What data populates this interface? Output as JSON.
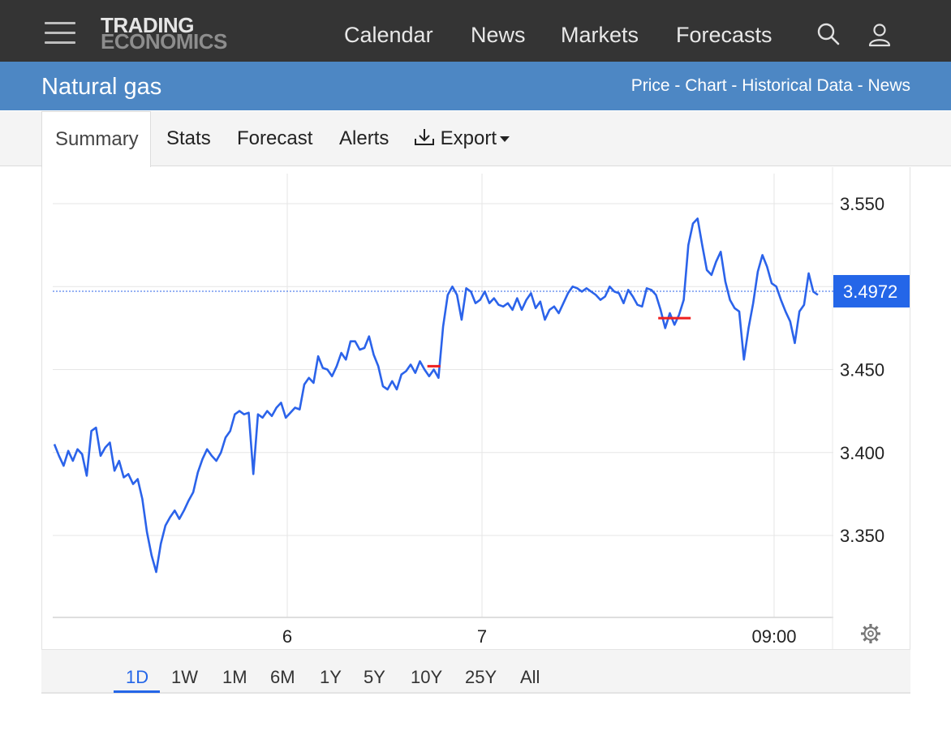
{
  "header": {
    "logo_line1": "TRADING",
    "logo_line2": "ECONOMICS",
    "nav": [
      "Calendar",
      "News",
      "Markets",
      "Forecasts"
    ],
    "icons": [
      "hamburger-menu-icon",
      "search-icon",
      "user-icon"
    ]
  },
  "page": {
    "title": "Natural gas",
    "links": [
      "Price",
      "Chart",
      "Historical Data",
      "News"
    ],
    "link_separator": " - "
  },
  "tabs": {
    "summary": "Summary",
    "stats": "Stats",
    "forecast": "Forecast",
    "alerts": "Alerts",
    "export": "Export"
  },
  "chart_data": {
    "type": "line",
    "title": "",
    "xlabel": "",
    "ylabel": "",
    "x_ticks": [
      "6",
      "7",
      "09:00"
    ],
    "y_ticks": [
      "3.350",
      "3.400",
      "3.450",
      "3.550"
    ],
    "ylim": [
      3.3,
      3.555
    ],
    "last_value_label": "3.4972",
    "last_value": 3.4972,
    "series": [
      {
        "color": "#2b63ea",
        "values": [
          3.405,
          3.398,
          3.392,
          3.401,
          3.395,
          3.402,
          3.399,
          3.386,
          3.413,
          3.415,
          3.398,
          3.403,
          3.406,
          3.389,
          3.395,
          3.385,
          3.387,
          3.381,
          3.384,
          3.372,
          3.352,
          3.338,
          3.328,
          3.345,
          3.356,
          3.361,
          3.365,
          3.36,
          3.365,
          3.371,
          3.376,
          3.388,
          3.396,
          3.402,
          3.398,
          3.395,
          3.4,
          3.409,
          3.413,
          3.423,
          3.425,
          3.423,
          3.424,
          3.387,
          3.423,
          3.421,
          3.425,
          3.422,
          3.427,
          3.43,
          3.421,
          3.424,
          3.427,
          3.426,
          3.441,
          3.445,
          3.442,
          3.458,
          3.451,
          3.45,
          3.446,
          3.452,
          3.46,
          3.456,
          3.467,
          3.467,
          3.462,
          3.463,
          3.47,
          3.459,
          3.452,
          3.44,
          3.438,
          3.443,
          3.438,
          3.447,
          3.449,
          3.453,
          3.448,
          3.455,
          3.45,
          3.446,
          3.45,
          3.445,
          3.476,
          3.495,
          3.5,
          3.495,
          3.48,
          3.499,
          3.497,
          3.49,
          3.492,
          3.497,
          3.49,
          3.493,
          3.489,
          3.488,
          3.49,
          3.486,
          3.493,
          3.486,
          3.492,
          3.496,
          3.487,
          3.491,
          3.48,
          3.486,
          3.488,
          3.484,
          3.49,
          3.496,
          3.5,
          3.499,
          3.497,
          3.499,
          3.497,
          3.495,
          3.492,
          3.494,
          3.5,
          3.497,
          3.496,
          3.49,
          3.498,
          3.494,
          3.489,
          3.488,
          3.499,
          3.498,
          3.495,
          3.486,
          3.475,
          3.484,
          3.477,
          3.483,
          3.492,
          3.525,
          3.538,
          3.541,
          3.525,
          3.51,
          3.507,
          3.515,
          3.521,
          3.503,
          3.492,
          3.487,
          3.485,
          3.456,
          3.475,
          3.49,
          3.509,
          3.519,
          3.512,
          3.502,
          3.5,
          3.492,
          3.485,
          3.479,
          3.466,
          3.485,
          3.489,
          3.508,
          3.497,
          3.495
        ]
      }
    ],
    "markers": [
      {
        "x_index": 82,
        "value": 3.452,
        "color": "#ef1f1f"
      },
      {
        "x_index": 134,
        "value": 3.481,
        "color": "#ef1f1f"
      }
    ],
    "grid": true,
    "settings_icon": "gear-icon"
  },
  "ranges": {
    "items": [
      "1D",
      "1W",
      "1M",
      "6M",
      "1Y",
      "5Y",
      "10Y",
      "25Y",
      "All"
    ],
    "active": "1D"
  },
  "colors": {
    "topbar": "#343434",
    "bluebar": "#4d87c4",
    "accent": "#2466e8",
    "line": "#2b63ea",
    "marker": "#ef1f1f"
  }
}
